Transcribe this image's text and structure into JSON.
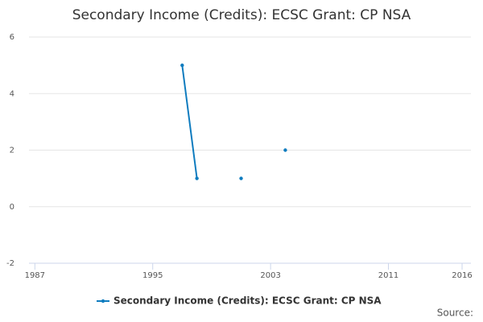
{
  "chart_data": {
    "type": "line",
    "title": "Secondary Income (Credits): ECSC Grant: CP NSA",
    "x": [
      1997,
      1998,
      1999,
      2000,
      2001,
      2002,
      2003,
      2004
    ],
    "series": [
      {
        "name": "Secondary Income (Credits): ECSC Grant: CP NSA",
        "color": "#0f7cbf",
        "values": [
          5,
          1,
          null,
          null,
          1,
          null,
          null,
          2
        ]
      }
    ],
    "xlim": [
      1986.6,
      2016.6
    ],
    "xticks": [
      1987,
      1995,
      2003,
      2011,
      2016
    ],
    "ylim": [
      -2,
      6
    ],
    "yticks": [
      -2,
      0,
      2,
      4,
      6
    ],
    "grid": true,
    "source": "Source:"
  }
}
